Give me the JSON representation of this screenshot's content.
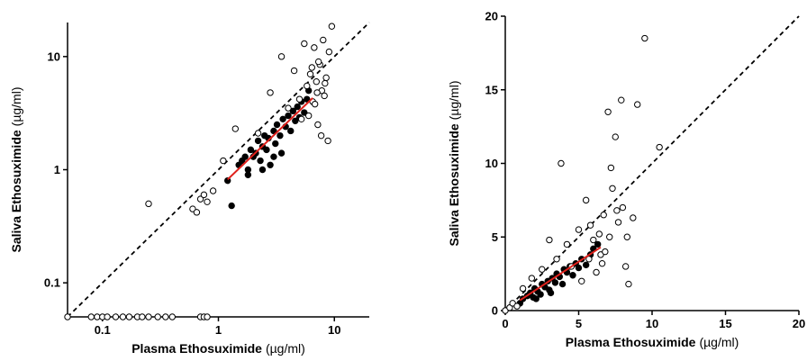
{
  "chart_data": [
    {
      "type": "scatter",
      "xscale": "log",
      "yscale": "log",
      "xlabel": "Plasma Ethosuximide",
      "xlabel_unit": "(µg/ml)",
      "ylabel": "Saliva Ethosuximide",
      "ylabel_unit": "(µg/ml)",
      "xlim": [
        0.05,
        20
      ],
      "ylim": [
        0.05,
        20
      ],
      "xticks": [
        0.1,
        1,
        10
      ],
      "yticks": [
        0.1,
        1,
        10
      ],
      "series": [
        {
          "color": "#000000",
          "marker_fill": "#000000",
          "x": [
            1.2,
            1.3,
            1.5,
            1.6,
            1.7,
            1.8,
            1.9,
            2.0,
            2.1,
            2.2,
            2.3,
            2.4,
            2.5,
            2.6,
            2.7,
            2.8,
            3.0,
            3.1,
            3.2,
            3.4,
            3.5,
            3.6,
            3.8,
            4.0,
            4.2,
            4.4,
            4.6,
            4.8,
            5.0,
            5.2,
            5.5,
            5.8,
            6.0,
            1.8,
            2.4,
            3.0
          ],
          "values": [
            0.8,
            0.48,
            1.1,
            1.2,
            1.3,
            1.0,
            1.5,
            1.3,
            1.4,
            1.8,
            1.2,
            1.6,
            2.0,
            1.5,
            1.9,
            1.1,
            2.2,
            1.7,
            2.5,
            2.0,
            1.4,
            2.8,
            2.4,
            3.0,
            2.2,
            3.3,
            2.7,
            3.6,
            2.9,
            4.0,
            3.2,
            4.2,
            5.0,
            0.9,
            1.0,
            1.3
          ]
        },
        {
          "color": "#000000",
          "marker_fill": "#ffffff",
          "x": [
            0.25,
            0.6,
            0.65,
            0.7,
            0.75,
            0.8,
            0.9,
            1.1,
            1.4,
            2.2,
            2.8,
            3.5,
            4.0,
            4.5,
            5.0,
            5.5,
            5.8,
            6.0,
            6.2,
            6.5,
            6.7,
            7.0,
            7.2,
            7.5,
            7.8,
            8.0,
            8.2,
            8.5,
            8.8,
            9.0,
            6.8,
            7.3,
            7.7,
            8.3,
            9.5,
            5.2,
            6.4,
            7.1
          ],
          "values": [
            0.5,
            0.45,
            0.42,
            0.55,
            0.6,
            0.52,
            0.65,
            1.2,
            2.3,
            2.1,
            4.8,
            10,
            3.5,
            7.5,
            4.2,
            13,
            5.5,
            3.0,
            7.0,
            4.0,
            12,
            6.0,
            2.5,
            8.5,
            5.0,
            14,
            4.5,
            6.5,
            1.8,
            11,
            3.8,
            9.0,
            2.0,
            5.8,
            18.5,
            2.8,
            8.0,
            4.8
          ]
        },
        {
          "color": "#000000",
          "marker_fill": "#ffffff",
          "x": [
            0.05,
            0.08,
            0.09,
            0.1,
            0.11,
            0.13,
            0.15,
            0.17,
            0.2,
            0.22,
            0.25,
            0.3,
            0.35,
            0.4,
            0.7,
            0.75,
            0.8
          ],
          "values": [
            0.05,
            0.05,
            0.05,
            0.05,
            0.05,
            0.05,
            0.05,
            0.05,
            0.05,
            0.05,
            0.05,
            0.05,
            0.05,
            0.05,
            0.05,
            0.05,
            0.05
          ]
        }
      ],
      "fit": {
        "color": "#e0201b",
        "x": [
          1.2,
          6.5
        ],
        "values": [
          0.82,
          4.3
        ]
      },
      "identity": {
        "color": "#000000",
        "x": [
          0.05,
          20
        ],
        "values": [
          0.05,
          20
        ]
      }
    },
    {
      "type": "scatter",
      "xscale": "linear",
      "yscale": "linear",
      "xlabel": "Plasma Ethosuximide",
      "xlabel_unit": "(µg/ml)",
      "ylabel": "Saliva Ethosuximide",
      "ylabel_unit": "(µg/ml)",
      "xlim": [
        0,
        20
      ],
      "ylim": [
        0,
        20
      ],
      "xticks": [
        0,
        5,
        10,
        15,
        20
      ],
      "yticks": [
        0,
        5,
        10,
        15,
        20
      ],
      "series": [
        {
          "color": "#000000",
          "marker_fill": "#000000",
          "x": [
            1.0,
            1.2,
            1.5,
            1.7,
            1.9,
            2.0,
            2.2,
            2.4,
            2.5,
            2.7,
            2.9,
            3.0,
            3.2,
            3.4,
            3.5,
            3.7,
            3.9,
            4.0,
            4.2,
            4.4,
            4.6,
            4.8,
            5.0,
            5.2,
            5.5,
            5.8,
            6.0,
            6.3,
            2.1,
            3.1
          ],
          "values": [
            0.5,
            0.8,
            1.0,
            1.2,
            0.9,
            1.5,
            1.3,
            1.1,
            1.8,
            1.6,
            2.0,
            1.4,
            2.2,
            1.9,
            2.5,
            2.3,
            1.8,
            2.8,
            2.6,
            3.0,
            2.4,
            3.2,
            2.9,
            3.5,
            3.1,
            3.8,
            4.2,
            4.5,
            0.8,
            1.2
          ]
        },
        {
          "color": "#000000",
          "marker_fill": "#ffffff",
          "x": [
            0,
            0.3,
            0.5,
            0.8,
            1.2,
            1.8,
            2.5,
            3.0,
            3.5,
            3.8,
            4.2,
            4.5,
            5.0,
            5.2,
            5.5,
            5.7,
            6.0,
            6.2,
            6.4,
            6.5,
            6.7,
            6.8,
            7.0,
            7.1,
            7.3,
            7.5,
            7.7,
            7.9,
            8.0,
            8.2,
            8.4,
            8.7,
            9.0,
            9.5,
            10.5,
            5.8,
            6.6,
            7.2,
            7.6,
            8.3
          ],
          "values": [
            0,
            0.2,
            0.5,
            0.3,
            1.5,
            2.2,
            2.8,
            4.8,
            3.5,
            10,
            4.5,
            3.0,
            5.5,
            2.0,
            7.5,
            3.5,
            4.8,
            2.6,
            5.2,
            3.8,
            6.5,
            4.0,
            13.5,
            5.0,
            8.3,
            11.8,
            6.0,
            14.3,
            7.0,
            3.0,
            1.8,
            6.3,
            14,
            18.5,
            11.1,
            5.8,
            3.2,
            9.7,
            6.8,
            5.0
          ]
        }
      ],
      "fit": {
        "color": "#e0201b",
        "x": [
          1.0,
          6.5
        ],
        "values": [
          0.7,
          4.3
        ]
      },
      "identity": {
        "color": "#000000",
        "x": [
          0,
          20
        ],
        "values": [
          0,
          20
        ]
      }
    }
  ]
}
